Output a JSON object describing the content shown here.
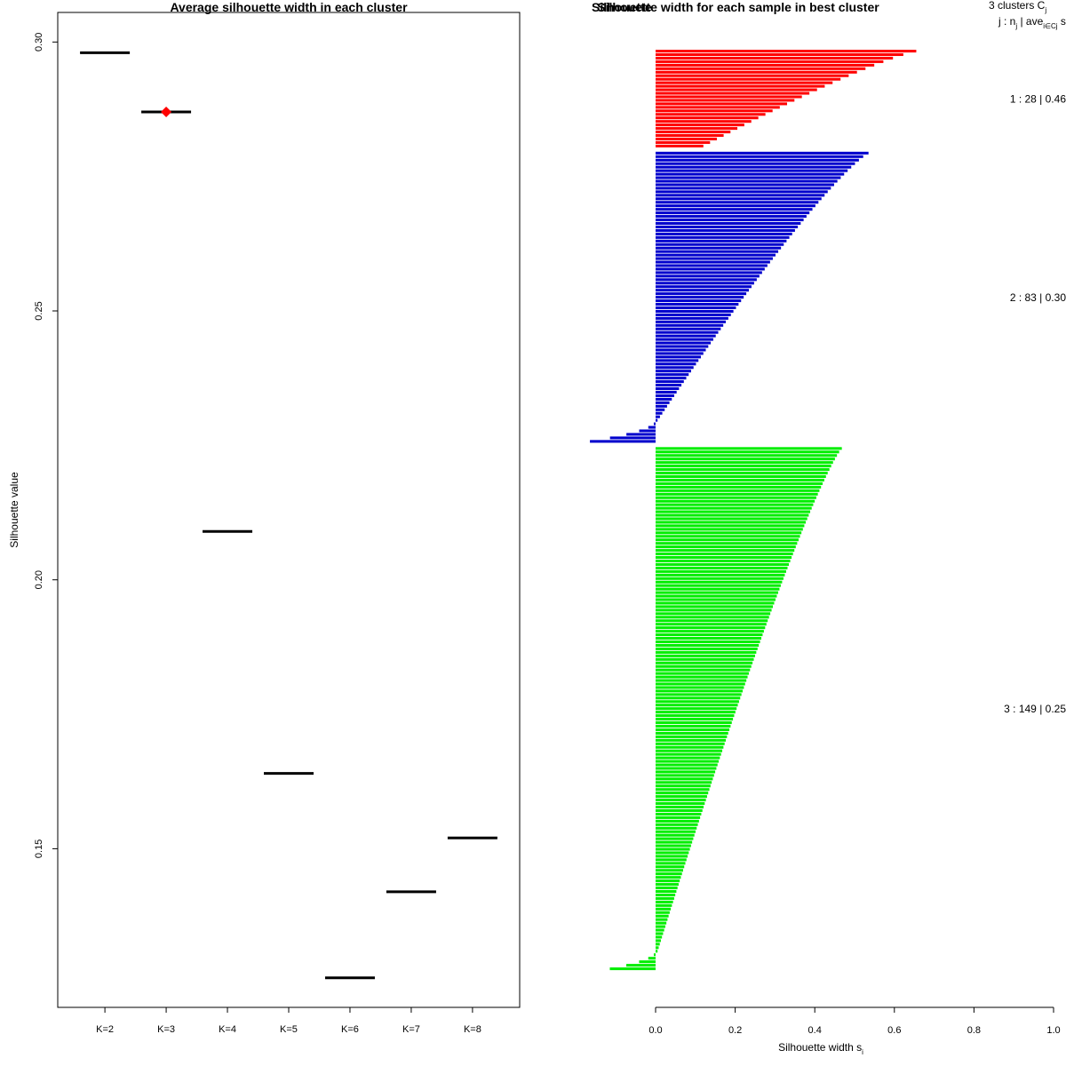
{
  "chart_data": [
    {
      "type": "scatter",
      "title": "Average silhouette width in each cluster",
      "xlabel": "",
      "ylabel": "Silhouette value",
      "categories": [
        "K=2",
        "K=3",
        "K=4",
        "K=5",
        "K=6",
        "K=7",
        "K=8"
      ],
      "values": [
        0.298,
        0.287,
        0.209,
        0.164,
        0.126,
        0.142,
        0.152
      ],
      "highlight_index": 1,
      "highlight_color": "#ff0000",
      "ylim": [
        0.1205,
        0.3055
      ],
      "yticks": [
        0.3,
        0.25,
        0.2,
        0.15
      ],
      "ytick_labels": [
        "0.30",
        "0.25",
        "0.20",
        "0.15"
      ],
      "grid": false
    },
    {
      "type": "bar",
      "orientation": "horizontal",
      "title": "Silhouette width for each sample in best cluster",
      "title_overlay": "Silhouette",
      "xlabel": "Silhouette width s",
      "xlabel_sub": "i",
      "xlim": [
        0,
        1
      ],
      "xticks": [
        0,
        0.2,
        0.4,
        0.6,
        0.8,
        1.0
      ],
      "xtick_labels": [
        "0.0",
        "0.2",
        "0.4",
        "0.6",
        "0.8",
        "1.0"
      ],
      "legend_header": "3  clusters  C",
      "legend_header_sub": "j",
      "legend_sub_main": "j :  n",
      "legend_sub_mid": " | ave",
      "legend_sub_sub": "i∈Cj",
      "legend_sub_end": "  s",
      "clusters": [
        {
          "label": "1 :   28  |  0.46",
          "n": 28,
          "color": "#ff0000",
          "max": 0.655,
          "min": 0.12,
          "neg_count": 0,
          "neg_min": 0
        },
        {
          "label": "2 :   83  |  0.30",
          "n": 83,
          "color": "#0000cd",
          "max": 0.535,
          "min": 0.005,
          "neg_count": 6,
          "neg_min": -0.165
        },
        {
          "label": "3 :  149  |  0.25",
          "n": 149,
          "color": "#00ee00",
          "max": 0.468,
          "min": 0.005,
          "neg_count": 5,
          "neg_min": -0.115
        }
      ]
    }
  ]
}
